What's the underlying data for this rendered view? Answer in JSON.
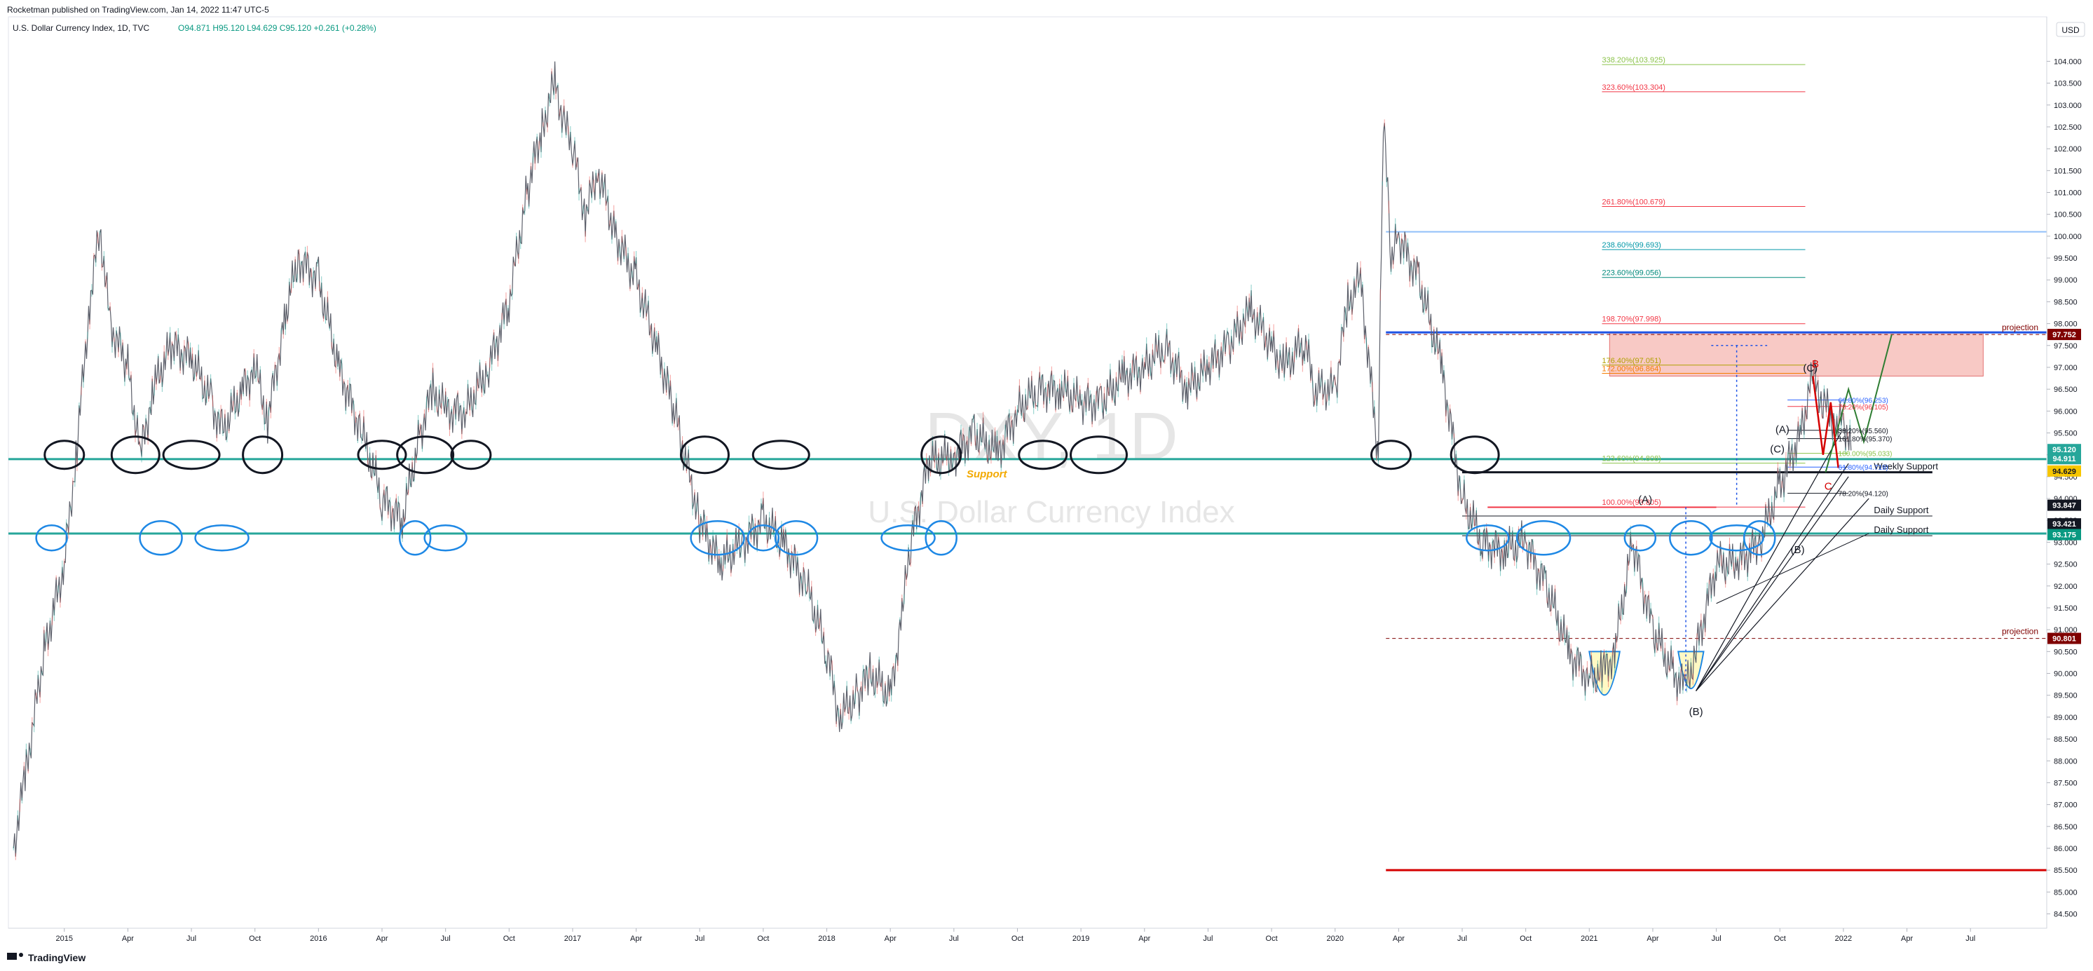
{
  "header": {
    "publisher": "Rocketman published on TradingView.com, Jan 14, 2022 11:47 UTC-5",
    "symbol_line": "U.S. Dollar Currency Index, 1D, TVC",
    "ohlc": "O94.871  H95.120  L94.629  C95.120  +0.261 (+0.28%)"
  },
  "watermark": {
    "ticker": "DXY, 1D",
    "name": "U.S. Dollar Currency Index"
  },
  "footer": {
    "logo_text": "TradingView"
  },
  "price_axis": {
    "currency": "USD",
    "ticks": [
      "104.000",
      "103.500",
      "103.000",
      "102.500",
      "102.000",
      "101.500",
      "101.000",
      "100.500",
      "100.000",
      "99.500",
      "99.000",
      "98.500",
      "98.000",
      "97.500",
      "97.000",
      "96.500",
      "96.000",
      "95.500",
      "95.000",
      "94.500",
      "94.000",
      "93.500",
      "93.000",
      "92.500",
      "92.000",
      "91.500",
      "91.000",
      "90.500",
      "90.000",
      "89.500",
      "89.000",
      "88.500",
      "88.000",
      "87.500",
      "87.000",
      "86.500",
      "86.000",
      "85.500",
      "85.000",
      "84.500"
    ],
    "badges": [
      {
        "label": "97.752",
        "price": 97.752,
        "color": "#7f0000"
      },
      {
        "label": "95.120",
        "price": 95.12,
        "color": "#26a69a"
      },
      {
        "label": "94.911",
        "price": 94.911,
        "color": "#26a69a"
      },
      {
        "label": "94.629",
        "price": 94.629,
        "color": "#f7c600"
      },
      {
        "label": "93.847",
        "price": 93.847,
        "color": "#131722"
      },
      {
        "label": "93.421",
        "price": 93.421,
        "color": "#131722"
      },
      {
        "label": "93.175",
        "price": 93.175,
        "color": "#089981"
      },
      {
        "label": "90.801",
        "price": 90.801,
        "color": "#7f0000"
      }
    ]
  },
  "time_axis": {
    "labels": [
      {
        "label": "2015",
        "date": 2015.0
      },
      {
        "label": "Apr",
        "date": 2015.25
      },
      {
        "label": "Jul",
        "date": 2015.5
      },
      {
        "label": "Oct",
        "date": 2015.75
      },
      {
        "label": "2016",
        "date": 2016.0
      },
      {
        "label": "Apr",
        "date": 2016.25
      },
      {
        "label": "Jul",
        "date": 2016.5
      },
      {
        "label": "Oct",
        "date": 2016.75
      },
      {
        "label": "2017",
        "date": 2017.0
      },
      {
        "label": "Apr",
        "date": 2017.25
      },
      {
        "label": "Jul",
        "date": 2017.5
      },
      {
        "label": "Oct",
        "date": 2017.75
      },
      {
        "label": "2018",
        "date": 2018.0
      },
      {
        "label": "Apr",
        "date": 2018.25
      },
      {
        "label": "Jul",
        "date": 2018.5
      },
      {
        "label": "Oct",
        "date": 2018.75
      },
      {
        "label": "2019",
        "date": 2019.0
      },
      {
        "label": "Apr",
        "date": 2019.25
      },
      {
        "label": "Jul",
        "date": 2019.5
      },
      {
        "label": "Oct",
        "date": 2019.75
      },
      {
        "label": "2020",
        "date": 2020.0
      },
      {
        "label": "Apr",
        "date": 2020.25
      },
      {
        "label": "Jul",
        "date": 2020.5
      },
      {
        "label": "Oct",
        "date": 2020.75
      },
      {
        "label": "2021",
        "date": 2021.0
      },
      {
        "label": "Apr",
        "date": 2021.25
      },
      {
        "label": "Jul",
        "date": 2021.5
      },
      {
        "label": "Oct",
        "date": 2021.75
      },
      {
        "label": "2022",
        "date": 2022.0
      },
      {
        "label": "Apr",
        "date": 2022.25
      },
      {
        "label": "Jul",
        "date": 2022.5
      }
    ]
  },
  "chart_data": {
    "type": "line",
    "symbol": "DXY",
    "interval": "1D",
    "x_unit": "decimal year",
    "xlim": [
      2014.78,
      2022.8
    ],
    "ylim": [
      84.3,
      104.6
    ],
    "grid": false,
    "series": [
      {
        "color": "#5d606b",
        "x": [
          2014.8,
          2014.85,
          2014.92,
          2015.0,
          2015.05,
          2015.1,
          2015.14,
          2015.18,
          2015.25,
          2015.3,
          2015.35,
          2015.42,
          2015.5,
          2015.58,
          2015.62,
          2015.7,
          2015.75,
          2015.8,
          2015.87,
          2015.92,
          2016.0,
          2016.08,
          2016.17,
          2016.25,
          2016.33,
          2016.4,
          2016.45,
          2016.5,
          2016.58,
          2016.67,
          2016.75,
          2016.82,
          2016.88,
          2016.93,
          2016.97,
          2017.0,
          2017.05,
          2017.1,
          2017.17,
          2017.25,
          2017.33,
          2017.4,
          2017.5,
          2017.58,
          2017.67,
          2017.75,
          2017.83,
          2017.92,
          2018.0,
          2018.05,
          2018.12,
          2018.17,
          2018.25,
          2018.3,
          2018.33,
          2018.4,
          2018.5,
          2018.58,
          2018.67,
          2018.75,
          2018.83,
          2018.92,
          2019.0,
          2019.08,
          2019.17,
          2019.25,
          2019.33,
          2019.42,
          2019.5,
          2019.58,
          2019.67,
          2019.75,
          2019.8,
          2019.88,
          2019.92,
          2020.0,
          2020.05,
          2020.1,
          2020.17,
          2020.19,
          2020.22,
          2020.25,
          2020.33,
          2020.42,
          2020.5,
          2020.58,
          2020.67,
          2020.75,
          2020.83,
          2020.92,
          2021.0,
          2021.05,
          2021.1,
          2021.17,
          2021.25,
          2021.33,
          2021.38,
          2021.42,
          2021.5,
          2021.58,
          2021.67,
          2021.75,
          2021.83,
          2021.88,
          2021.92,
          2021.97,
          2022.0,
          2022.03
        ],
        "y": [
          86.0,
          87.8,
          90.5,
          92.5,
          95.2,
          98.5,
          100.2,
          98.0,
          97.0,
          95.0,
          96.5,
          97.5,
          97.2,
          96.2,
          95.5,
          96.5,
          97.0,
          95.8,
          98.2,
          99.5,
          99.0,
          97.0,
          95.5,
          94.0,
          93.5,
          95.5,
          96.5,
          96.0,
          96.0,
          97.0,
          98.5,
          101.0,
          102.5,
          103.5,
          102.5,
          102.0,
          100.5,
          101.5,
          100.0,
          99.0,
          97.5,
          96.0,
          93.5,
          92.5,
          93.0,
          93.5,
          93.0,
          92.0,
          90.5,
          89.0,
          89.5,
          90.0,
          89.5,
          91.5,
          93.0,
          94.8,
          95.0,
          95.5,
          95.0,
          96.0,
          96.5,
          96.5,
          96.2,
          96.2,
          96.8,
          97.0,
          97.5,
          96.5,
          97.0,
          97.5,
          98.3,
          97.5,
          97.0,
          97.6,
          96.5,
          96.5,
          98.5,
          99.0,
          95.0,
          102.8,
          99.5,
          100.0,
          99.0,
          97.0,
          94.0,
          93.0,
          92.8,
          93.0,
          92.0,
          90.5,
          89.9,
          90.0,
          90.5,
          93.0,
          91.0,
          90.0,
          89.7,
          90.5,
          92.5,
          92.5,
          93.0,
          94.3,
          95.5,
          96.8,
          96.2,
          95.7,
          95.8,
          95.1
        ]
      }
    ],
    "horizontal_levels": [
      {
        "label": "Support",
        "price": 94.9,
        "color": "#26a69a"
      },
      {
        "price": 93.2,
        "color": "#26a69a"
      },
      {
        "label": "Weekly Support",
        "price": 94.6,
        "color": "#131722"
      },
      {
        "label": "Daily Support",
        "price": 93.6,
        "color": "#131722"
      },
      {
        "label": "Daily Support",
        "price": 93.15,
        "color": "#131722"
      },
      {
        "price": 97.8,
        "color": "#1e53e5"
      },
      {
        "price": 100.1,
        "color": "#90bff9"
      },
      {
        "price": 85.5,
        "color": "#d50000"
      },
      {
        "price": 93.8,
        "color": "#f23645"
      }
    ],
    "fib_levels": [
      {
        "label": "338.20%(103.925)",
        "price": 103.925,
        "color": "#8bc34a"
      },
      {
        "label": "323.60%(103.304)",
        "price": 103.304,
        "color": "#f23645"
      },
      {
        "label": "261.80%(100.679)",
        "price": 100.679,
        "color": "#f23645"
      },
      {
        "label": "238.60%(99.693)",
        "price": 99.693,
        "color": "#0097a7"
      },
      {
        "label": "223.60%(99.056)",
        "price": 99.056,
        "color": "#00897b"
      },
      {
        "label": "198.70%(97.998)",
        "price": 97.998,
        "color": "#f23645"
      },
      {
        "label": "176.40%(97.051)",
        "price": 97.051,
        "color": "#b0a000"
      },
      {
        "label": "172.00%(96.864)",
        "price": 96.864,
        "color": "#f57c00"
      },
      {
        "label": "123.60%(94.808)",
        "price": 94.808,
        "color": "#8bc34a"
      },
      {
        "label": "100.00%(93.805)",
        "price": 93.805,
        "color": "#f23645"
      }
    ],
    "small_fib_levels": [
      {
        "label": "66.80%(96.253)",
        "price": 96.253,
        "color": "#2962ff"
      },
      {
        "label": "78.20%(96.105)",
        "price": 96.105,
        "color": "#f23645"
      },
      {
        "label": "38.20%(95.560)",
        "price": 95.56,
        "color": "#131722"
      },
      {
        "label": "161.80%(95.370)",
        "price": 95.37,
        "color": "#131722"
      },
      {
        "label": "100.00%(95.033)",
        "price": 95.033,
        "color": "#8bc34a"
      },
      {
        "label": "61.80%(94.719)",
        "price": 94.719,
        "color": "#2962ff"
      },
      {
        "label": "78.20%(94.120)",
        "price": 94.12,
        "color": "#131722"
      }
    ],
    "projections": [
      {
        "label": "projection",
        "price": 97.752,
        "color": "#7f0000"
      },
      {
        "label": "projection",
        "price": 90.801,
        "color": "#7f0000"
      }
    ],
    "wave_labels": [
      {
        "label": "(A)",
        "x": 2021.22,
        "price": 93.9,
        "color": "#131722"
      },
      {
        "label": "(B)",
        "x": 2021.42,
        "price": 89.05,
        "color": "#131722"
      },
      {
        "label": "(C)",
        "x": 2021.74,
        "price": 95.05,
        "color": "#131722"
      },
      {
        "label": "(A)",
        "x": 2021.76,
        "price": 95.5,
        "color": "#131722"
      },
      {
        "label": "(B)",
        "x": 2021.82,
        "price": 92.75,
        "color": "#131722"
      },
      {
        "label": "(C)",
        "x": 2021.87,
        "price": 96.9,
        "color": "#131722"
      },
      {
        "label": "B",
        "x": 2021.89,
        "price": 97.0,
        "color": "#d50000"
      },
      {
        "label": "C",
        "x": 2021.94,
        "price": 94.2,
        "color": "#d50000"
      }
    ],
    "target_zone": {
      "x": [
        2021.08,
        2022.55
      ],
      "price": [
        96.8,
        97.8
      ],
      "color": "#f5b7b1"
    }
  }
}
